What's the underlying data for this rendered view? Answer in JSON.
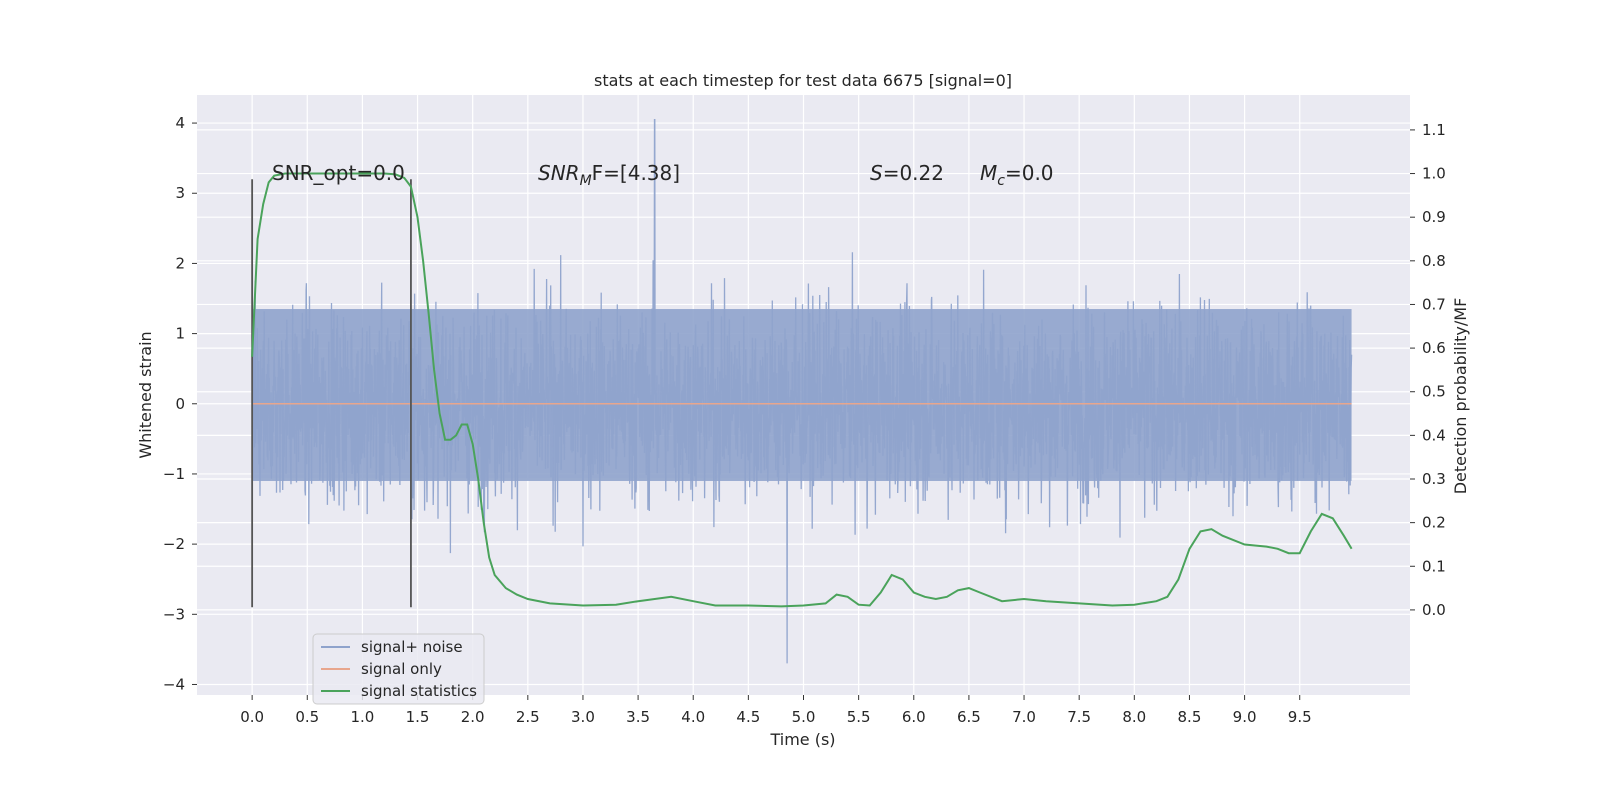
{
  "chart_data": {
    "type": "line",
    "title": "stats at each timestep for test data 6675 [signal=0]",
    "xlabel": "Time (s)",
    "ylabel": "Whitened strain",
    "ylabel_right": "Detection probability/MF",
    "xlim": [
      -0.5,
      10.5
    ],
    "ylim": [
      -4.15,
      4.4
    ],
    "ylim_right": [
      -0.195,
      1.18
    ],
    "x_ticks": [
      "0.0",
      "0.5",
      "1.0",
      "1.5",
      "2.0",
      "2.5",
      "3.0",
      "3.5",
      "4.0",
      "4.5",
      "5.0",
      "5.5",
      "6.0",
      "6.5",
      "7.0",
      "7.5",
      "8.0",
      "8.5",
      "9.0",
      "9.5"
    ],
    "y_ticks": [
      "4",
      "3",
      "2",
      "1",
      "0",
      "−1",
      "−2",
      "−3",
      "−4"
    ],
    "y_right_ticks": [
      "1.1",
      "1.0",
      "0.9",
      "0.8",
      "0.7",
      "0.6",
      "0.5",
      "0.4",
      "0.3",
      "0.2",
      "0.1",
      "0.0"
    ],
    "grid": true,
    "legend_position": "lower-left",
    "annotations": {
      "snr_opt": "SNR_opt=0.0",
      "snr_mf": "SNR",
      "snr_mf_sub": "M",
      "snr_mf_tail": "F=[4.38]",
      "s_label": "S",
      "s_value": "=0.22",
      "mc_label": "M",
      "mc_sub": "c",
      "mc_value": "=0.0"
    },
    "vlines": [
      0.0,
      1.44
    ],
    "series": [
      {
        "name": "signal+ noise",
        "color": "#8fa3cc",
        "x_range": [
          0.0,
          9.97
        ],
        "envelope_core": [
          -1.1,
          1.35
        ],
        "extremes": {
          "max": 4.05,
          "max_at": 3.65,
          "min": -3.75,
          "min_at": 4.85
        }
      },
      {
        "name": "signal only",
        "color": "#e8a68d",
        "x": [
          0.0,
          9.97
        ],
        "y": [
          0.0,
          0.0
        ]
      },
      {
        "name": "signal statistics",
        "color": "#4aa35b",
        "axis": "right",
        "x": [
          0.0,
          0.05,
          0.1,
          0.15,
          0.2,
          0.3,
          0.5,
          0.8,
          1.0,
          1.2,
          1.3,
          1.38,
          1.44,
          1.5,
          1.55,
          1.6,
          1.65,
          1.7,
          1.75,
          1.8,
          1.85,
          1.9,
          1.95,
          2.0,
          2.05,
          2.1,
          2.15,
          2.2,
          2.3,
          2.4,
          2.5,
          2.7,
          3.0,
          3.3,
          3.5,
          3.8,
          4.0,
          4.2,
          4.5,
          4.8,
          5.0,
          5.2,
          5.3,
          5.4,
          5.5,
          5.6,
          5.7,
          5.8,
          5.9,
          6.0,
          6.1,
          6.2,
          6.3,
          6.4,
          6.5,
          6.6,
          6.8,
          7.0,
          7.2,
          7.5,
          7.8,
          8.0,
          8.2,
          8.3,
          8.4,
          8.5,
          8.6,
          8.7,
          8.8,
          9.0,
          9.2,
          9.3,
          9.4,
          9.5,
          9.6,
          9.7,
          9.8,
          9.9,
          9.97
        ],
        "y": [
          0.58,
          0.85,
          0.93,
          0.98,
          0.995,
          1.0,
          1.0,
          1.0,
          1.0,
          1.0,
          0.998,
          0.99,
          0.97,
          0.9,
          0.8,
          0.68,
          0.55,
          0.45,
          0.39,
          0.39,
          0.4,
          0.425,
          0.425,
          0.38,
          0.3,
          0.2,
          0.12,
          0.08,
          0.05,
          0.035,
          0.025,
          0.015,
          0.01,
          0.012,
          0.02,
          0.03,
          0.02,
          0.01,
          0.01,
          0.008,
          0.01,
          0.015,
          0.035,
          0.03,
          0.012,
          0.01,
          0.04,
          0.08,
          0.07,
          0.04,
          0.03,
          0.025,
          0.03,
          0.045,
          0.05,
          0.04,
          0.02,
          0.025,
          0.02,
          0.015,
          0.01,
          0.012,
          0.02,
          0.03,
          0.07,
          0.14,
          0.18,
          0.185,
          0.17,
          0.15,
          0.145,
          0.14,
          0.13,
          0.13,
          0.18,
          0.22,
          0.21,
          0.17,
          0.14
        ]
      }
    ]
  }
}
